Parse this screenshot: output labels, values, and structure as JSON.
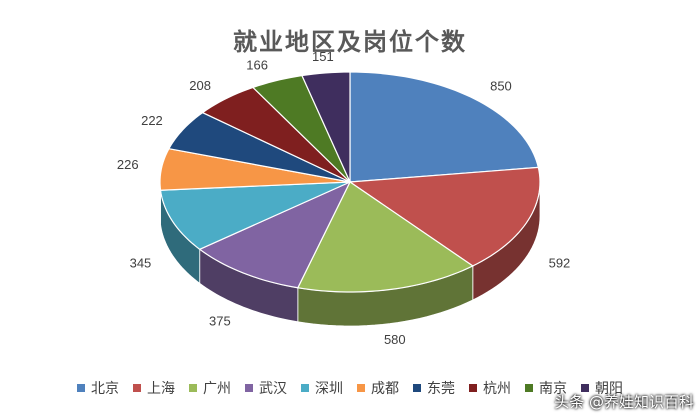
{
  "chart_data": {
    "type": "pie",
    "title": "就业地区及岗位个数",
    "categories": [
      "北京",
      "上海",
      "广州",
      "武汉",
      "深圳",
      "成都",
      "东莞",
      "杭州",
      "南京",
      "朝阳"
    ],
    "values": [
      850,
      592,
      580,
      375,
      345,
      226,
      222,
      208,
      166,
      151
    ],
    "colors": [
      "#4F81BD",
      "#C0504D",
      "#9BBB59",
      "#8064A2",
      "#4BACC6",
      "#F79646",
      "#1F497D",
      "#7F1F1F",
      "#4E7A24",
      "#3F2E5E"
    ],
    "legend_position": "bottom",
    "style": "3d"
  },
  "watermark": "头条 @养娃知识百科"
}
